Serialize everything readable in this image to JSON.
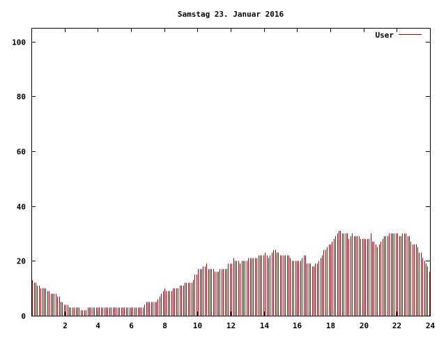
{
  "chart_data": {
    "type": "bar",
    "title": "Samstag 23. Januar 2016",
    "xlabel": "",
    "ylabel": "",
    "xlim": [
      0,
      24
    ],
    "ylim": [
      0,
      105
    ],
    "x_ticks": [
      "2",
      "4",
      "6",
      "8",
      "10",
      "12",
      "14",
      "16",
      "18",
      "20",
      "22",
      "24"
    ],
    "y_ticks": [
      "0",
      "20",
      "40",
      "60",
      "80",
      "100"
    ],
    "grid": false,
    "legend_position": "top-right",
    "series": [
      {
        "name": "User",
        "color": "#c00000",
        "values": [
          13,
          12,
          12,
          11,
          11,
          10,
          10,
          10,
          10,
          9,
          9,
          8,
          8,
          8,
          8,
          7,
          7,
          5,
          5,
          4,
          4,
          4,
          3,
          3,
          3,
          3,
          3,
          3,
          3,
          2,
          2,
          2,
          2,
          3,
          3,
          3,
          3,
          3,
          3,
          3,
          3,
          3,
          3,
          3,
          3,
          3,
          3,
          3,
          3,
          3,
          3,
          3,
          3,
          3,
          3,
          3,
          3,
          3,
          3,
          3,
          3,
          3,
          3,
          3,
          3,
          3,
          3,
          4,
          5,
          5,
          5,
          5,
          5,
          5,
          5,
          6,
          7,
          8,
          9,
          10,
          9,
          9,
          9,
          9,
          10,
          10,
          10,
          10,
          11,
          11,
          11,
          12,
          12,
          12,
          12,
          12,
          13,
          15,
          15,
          17,
          17,
          17,
          18,
          18,
          19,
          17,
          17,
          17,
          17,
          16,
          16,
          16,
          17,
          17,
          17,
          17,
          17,
          19,
          19,
          19,
          21,
          20,
          20,
          20,
          19,
          20,
          20,
          20,
          20,
          21,
          21,
          21,
          21,
          21,
          21,
          22,
          22,
          22,
          22,
          23,
          22,
          21,
          22,
          23,
          24,
          24,
          23,
          23,
          22,
          22,
          22,
          22,
          22,
          22,
          21,
          20,
          20,
          20,
          20,
          20,
          20,
          21,
          22,
          22,
          19,
          19,
          19,
          18,
          18,
          19,
          19,
          20,
          21,
          22,
          24,
          24,
          25,
          26,
          26,
          27,
          28,
          29,
          30,
          31,
          31,
          30,
          30,
          30,
          30,
          28,
          29,
          30,
          29,
          29,
          29,
          29,
          28,
          28,
          28,
          28,
          28,
          28,
          30,
          27,
          27,
          26,
          25,
          26,
          27,
          28,
          29,
          29,
          29,
          30,
          30,
          30,
          30,
          30,
          30,
          29,
          29,
          30,
          30,
          30,
          29,
          29,
          27,
          26,
          26,
          26,
          25,
          23,
          23,
          21,
          20,
          19,
          18,
          16
        ]
      }
    ]
  }
}
